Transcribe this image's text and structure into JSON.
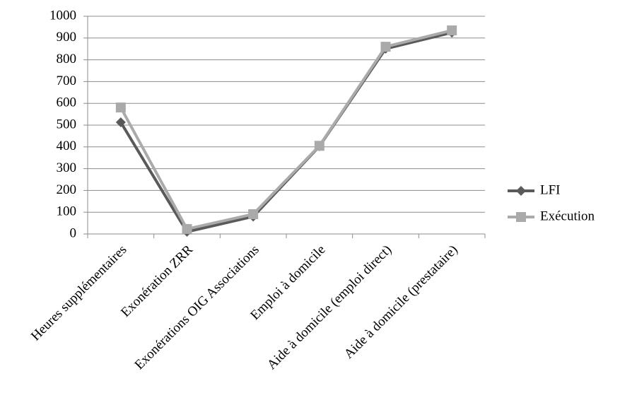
{
  "chart_data": {
    "type": "line",
    "categories": [
      "Heures supplémentaires",
      "Exonération ZRR",
      "Exonérations OIG Associations",
      "Emploi à domicile",
      "Aide à domicile (emploi direct)",
      "Aide à domicile (prestataire)"
    ],
    "series": [
      {
        "name": "LFI",
        "color": "#5a5a5a",
        "marker": "diamond",
        "values": [
          513,
          10,
          80,
          403,
          851,
          925
        ]
      },
      {
        "name": "Exécution",
        "color": "#aaaaaa",
        "marker": "square",
        "values": [
          581,
          23,
          91,
          405,
          860,
          935
        ]
      }
    ],
    "ylim": [
      0,
      1000
    ],
    "yticks": [
      0,
      100,
      200,
      300,
      400,
      500,
      600,
      700,
      800,
      900,
      1000
    ],
    "grid": true,
    "legend": "right"
  }
}
